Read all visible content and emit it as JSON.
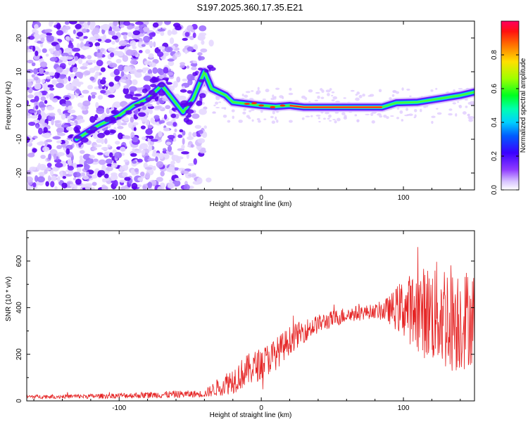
{
  "chart_data": [
    {
      "type": "heatmap",
      "title": "S197.2025.360.17.35.E21",
      "xlabel": "Height of straight line (km)",
      "ylabel": "Frequency (Hz)",
      "xlim": [
        -165,
        150
      ],
      "ylim": [
        -25,
        25
      ],
      "xticks": [
        -100,
        0,
        100
      ],
      "yticks": [
        -20,
        -10,
        0,
        10,
        20
      ],
      "colorbar": {
        "label": "Normalized spectral amplitude",
        "range": [
          0,
          1
        ],
        "ticks": [
          0.0,
          0.2,
          0.4,
          0.6,
          0.8
        ],
        "tick_labels": [
          "0.0",
          "0.2",
          "0.4",
          "0.6",
          "0.8"
        ],
        "colormap": [
          "#ffffff",
          "#c9a8ff",
          "#7b00ff",
          "#1e00ff",
          "#00a0ff",
          "#00f0ff",
          "#00ff60",
          "#60ff00",
          "#d8ff00",
          "#ffb000",
          "#ff3000",
          "#ff0050"
        ]
      },
      "ridge": [
        {
          "x": -130,
          "y": -10
        },
        {
          "x": -115,
          "y": -6
        },
        {
          "x": -100,
          "y": -3
        },
        {
          "x": -90,
          "y": 0
        },
        {
          "x": -80,
          "y": 2
        },
        {
          "x": -70,
          "y": 6
        },
        {
          "x": -55,
          "y": -2
        },
        {
          "x": -48,
          "y": 2
        },
        {
          "x": -40,
          "y": 10
        },
        {
          "x": -35,
          "y": 5
        },
        {
          "x": -25,
          "y": 3
        },
        {
          "x": -20,
          "y": 1
        },
        {
          "x": -10,
          "y": 0.5
        },
        {
          "x": 0,
          "y": 0
        },
        {
          "x": 10,
          "y": -0.3
        },
        {
          "x": 20,
          "y": 0
        },
        {
          "x": 30,
          "y": -0.5
        },
        {
          "x": 60,
          "y": -0.5
        },
        {
          "x": 85,
          "y": -0.5
        },
        {
          "x": 95,
          "y": 0.8
        },
        {
          "x": 110,
          "y": 1
        },
        {
          "x": 125,
          "y": 2
        },
        {
          "x": 140,
          "y": 3
        },
        {
          "x": 150,
          "y": 4
        }
      ]
    },
    {
      "type": "line",
      "xlabel": "Height of straight line (km)",
      "ylabel": "SNR (10 * v/v)",
      "xlim": [
        -165,
        150
      ],
      "ylim": [
        0,
        730
      ],
      "xticks": [
        -100,
        0,
        100
      ],
      "yticks": [
        0,
        200,
        400,
        600
      ],
      "series": [
        {
          "name": "SNR",
          "color": "#e52222",
          "envelope": [
            {
              "x": -165,
              "mean": 18,
              "amp": 8
            },
            {
              "x": -120,
              "mean": 20,
              "amp": 10
            },
            {
              "x": -80,
              "mean": 25,
              "amp": 14
            },
            {
              "x": -60,
              "mean": 28,
              "amp": 16
            },
            {
              "x": -40,
              "mean": 30,
              "amp": 15
            },
            {
              "x": -30,
              "mean": 60,
              "amp": 40
            },
            {
              "x": -20,
              "mean": 90,
              "amp": 60
            },
            {
              "x": -10,
              "mean": 130,
              "amp": 70
            },
            {
              "x": 0,
              "mean": 160,
              "amp": 70
            },
            {
              "x": 10,
              "mean": 200,
              "amp": 70
            },
            {
              "x": 20,
              "mean": 260,
              "amp": 60
            },
            {
              "x": 30,
              "mean": 300,
              "amp": 50
            },
            {
              "x": 40,
              "mean": 330,
              "amp": 40
            },
            {
              "x": 60,
              "mean": 370,
              "amp": 35
            },
            {
              "x": 80,
              "mean": 385,
              "amp": 30
            },
            {
              "x": 90,
              "mean": 390,
              "amp": 60
            },
            {
              "x": 100,
              "mean": 400,
              "amp": 130
            },
            {
              "x": 115,
              "mean": 380,
              "amp": 200
            },
            {
              "x": 130,
              "mean": 370,
              "amp": 250
            },
            {
              "x": 140,
              "mean": 350,
              "amp": 230
            },
            {
              "x": 150,
              "mean": 360,
              "amp": 200
            }
          ]
        }
      ]
    }
  ]
}
